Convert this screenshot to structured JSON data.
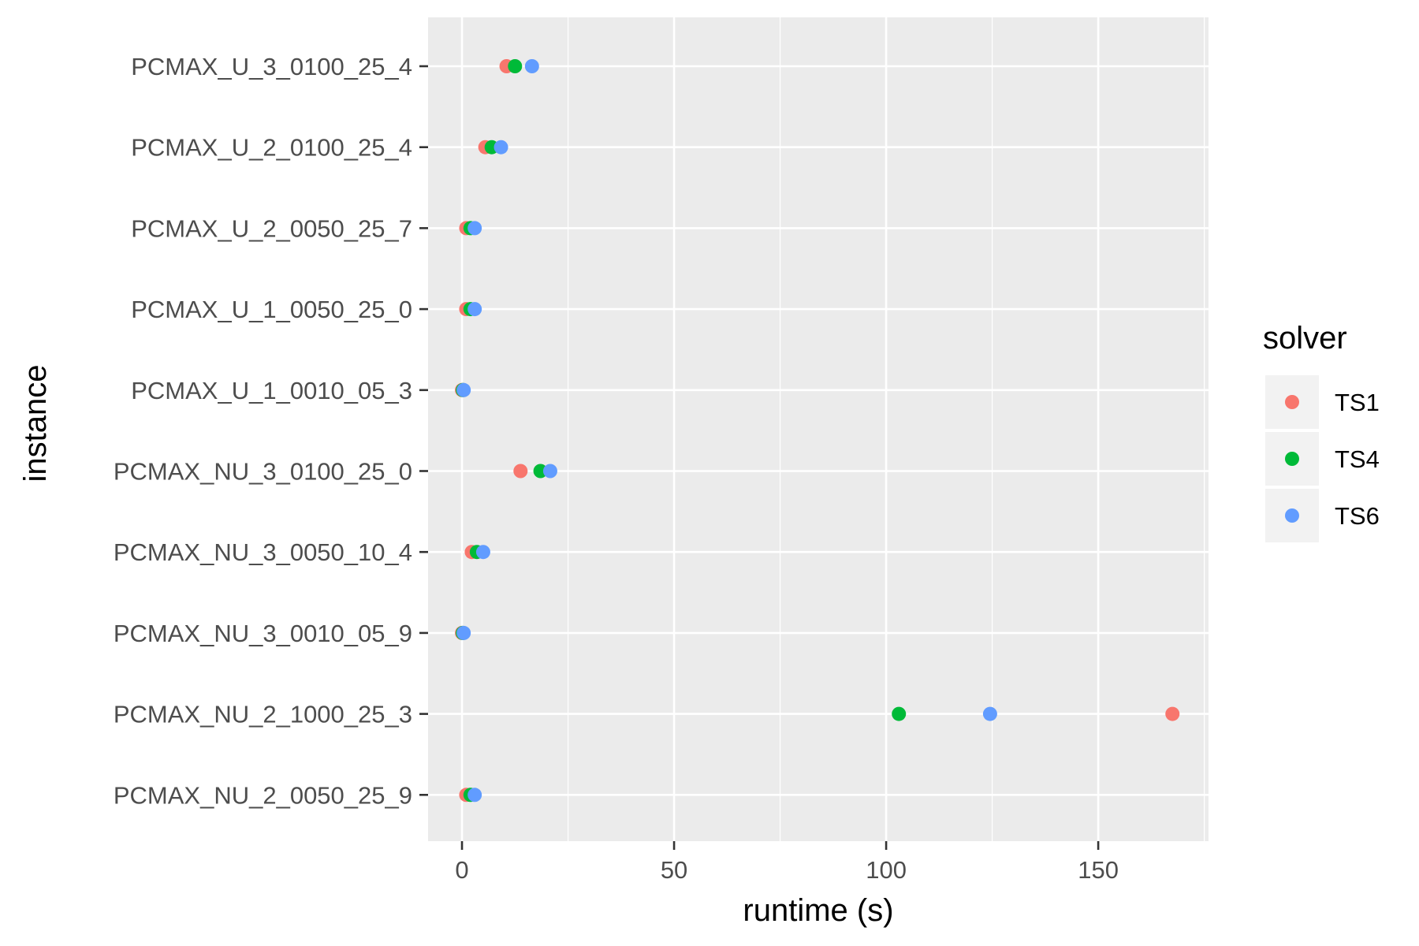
{
  "chart_data": {
    "type": "scatter",
    "title": "",
    "xlabel": "runtime (s)",
    "ylabel": "instance",
    "xlim": [
      -8,
      176
    ],
    "x_ticks": [
      0,
      50,
      100,
      150
    ],
    "x_tick_labels": [
      "0",
      "50",
      "100",
      "150"
    ],
    "x_minor_ticks": [
      25,
      75,
      125,
      175
    ],
    "categories": [
      "PCMAX_U_3_0100_25_4",
      "PCMAX_U_2_0100_25_4",
      "PCMAX_U_2_0050_25_7",
      "PCMAX_U_1_0050_25_0",
      "PCMAX_U_1_0010_05_3",
      "PCMAX_NU_3_0100_25_0",
      "PCMAX_NU_3_0050_10_4",
      "PCMAX_NU_3_0010_05_9",
      "PCMAX_NU_2_1000_25_3",
      "PCMAX_NU_2_0050_25_9"
    ],
    "grid": true,
    "legend": {
      "title": "solver",
      "position": "right"
    },
    "series": [
      {
        "name": "TS1",
        "color": "#F8766D",
        "values": [
          10.5,
          5.5,
          1.0,
          1.0,
          0.0,
          13.8,
          2.3,
          0.0,
          167.5,
          1.0
        ]
      },
      {
        "name": "TS4",
        "color": "#00BA38",
        "values": [
          12.5,
          7.0,
          2.0,
          2.0,
          0.2,
          18.5,
          3.5,
          0.2,
          103.0,
          2.0
        ]
      },
      {
        "name": "TS6",
        "color": "#619CFF",
        "values": [
          16.5,
          9.2,
          3.0,
          3.0,
          0.4,
          20.8,
          5.0,
          0.4,
          124.5,
          3.0
        ]
      }
    ]
  }
}
